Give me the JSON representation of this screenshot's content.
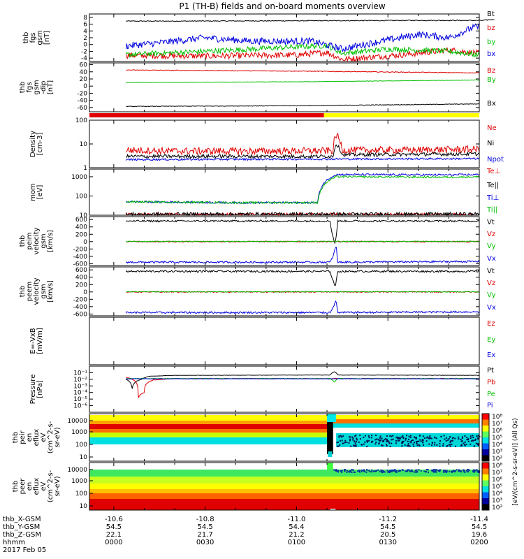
{
  "title": "P1 (TH-B) fields and on-board moments overview",
  "colors": {
    "black": "#000000",
    "red": "#e00000",
    "green": "#00c000",
    "blue": "#0000e0",
    "yellow": "#ffff00",
    "cyan": "#00e0e0"
  },
  "chart_data": [
    {
      "type": "line",
      "ylabel": [
        "thb",
        "fgs",
        "gsm",
        "[nT]"
      ],
      "ylim": [
        -5,
        9
      ],
      "ticks": [
        {
          "v": 8,
          "t": "8"
        },
        {
          "v": 6,
          "t": "6"
        },
        {
          "v": 4,
          "t": "4"
        },
        {
          "v": 2,
          "t": "2"
        },
        {
          "v": 0,
          "t": "0"
        },
        {
          "v": -2,
          "t": "-2"
        },
        {
          "v": -4,
          "t": "-4"
        }
      ],
      "series": [
        {
          "name": "Bt",
          "color": "#000000",
          "x": [
            4,
            20,
            60,
            100,
            118,
            119,
            121,
            125
          ],
          "y": [
            6.9,
            6.9,
            7.0,
            7.1,
            7.1,
            7.1,
            7.1,
            7.4
          ],
          "noise": 0.12
        },
        {
          "name": "bz",
          "color": "#e00000",
          "x": [
            4,
            30,
            60,
            70,
            75,
            95,
            110,
            120
          ],
          "y": [
            -3.2,
            -3.4,
            -3.1,
            -2.3,
            -4.4,
            -3.0,
            -1.6,
            -2.6
          ],
          "noise": 0.9
        },
        {
          "name": "by",
          "color": "#00c000",
          "x": [
            4,
            30,
            70,
            75,
            90,
            110,
            120
          ],
          "y": [
            -3.0,
            -2.0,
            -0.3,
            -2.6,
            -1.3,
            -2.0,
            -3.1
          ],
          "noise": 0.8
        },
        {
          "name": "bx",
          "color": "#0000e0",
          "x": [
            4,
            15,
            30,
            45,
            65,
            75,
            85,
            100,
            110,
            118,
            120
          ],
          "y": [
            -0.4,
            0.5,
            2.0,
            1.0,
            1.0,
            -1.3,
            0.5,
            3.0,
            2.0,
            5.0,
            5.2
          ],
          "noise": 1.0
        }
      ]
    },
    {
      "type": "line",
      "ylabel": [
        "thb",
        "fgs",
        "gsm",
        "-dip",
        "[nT]"
      ],
      "ylim": [
        -72,
        65
      ],
      "ticks": [
        {
          "v": 60,
          "t": "60"
        },
        {
          "v": 40,
          "t": "40"
        },
        {
          "v": 20,
          "t": "20"
        },
        {
          "v": 0,
          "t": "0"
        },
        {
          "v": -20,
          "t": "-20"
        },
        {
          "v": -40,
          "t": "-40"
        },
        {
          "v": -60,
          "t": "-60"
        }
      ],
      "series": [
        {
          "name": "Bz",
          "color": "#e00000",
          "x": [
            4,
            60,
            120
          ],
          "y": [
            45,
            42,
            37
          ],
          "noise": 1.0
        },
        {
          "name": "By",
          "color": "#00c000",
          "x": [
            4,
            60,
            120
          ],
          "y": [
            10,
            12,
            17
          ],
          "noise": 0.6
        },
        {
          "name": "Bx",
          "color": "#000000",
          "x": [
            4,
            60,
            120
          ],
          "y": [
            -57,
            -55,
            -50
          ],
          "noise": 0.8
        }
      ]
    },
    {
      "type": "line",
      "scale": "log",
      "ylabel": [
        "Density",
        "[cm-3]"
      ],
      "ylim": [
        1,
        100
      ],
      "ticks": [
        {
          "v": 100,
          "t": "100"
        },
        {
          "v": 10,
          "t": "10"
        },
        {
          "v": 1,
          "t": "1"
        }
      ],
      "series": [
        {
          "name": "Ne",
          "color": "#e00000",
          "x": [
            4,
            20,
            55,
            72,
            73,
            75,
            95,
            120
          ],
          "y": [
            5.5,
            5.0,
            5.0,
            5.2,
            25,
            5.5,
            5.5,
            6.0
          ],
          "noise": 0.3
        },
        {
          "name": "Ni",
          "color": "#000000",
          "x": [
            4,
            55,
            72,
            73,
            75,
            120
          ],
          "y": [
            3.0,
            3.0,
            3.0,
            10,
            3.5,
            3.8
          ],
          "noise": 0.15
        },
        {
          "name": "Npot",
          "color": "#0000e0",
          "x": [
            4,
            120
          ],
          "y": [
            2.2,
            2.4
          ],
          "noise": 0.08
        }
      ]
    },
    {
      "type": "line",
      "scale": "log",
      "ylabel": [
        "mom",
        "[eV]"
      ],
      "ylim": [
        10,
        2500
      ],
      "ticks": [
        {
          "v": 1000,
          "t": "1000"
        },
        {
          "v": 100,
          "t": "100"
        },
        {
          "v": 10,
          "t": "10"
        }
      ],
      "series": [
        {
          "name": "Te⊥",
          "color": "#e00000",
          "x": [
            4,
            120
          ],
          "y": [
            10.5,
            10.5
          ],
          "noise": 0.2
        },
        {
          "name": "Te||",
          "color": "#000000",
          "x": [
            4,
            120
          ],
          "y": [
            11.2,
            11.2
          ],
          "noise": 0.2
        },
        {
          "name": "Ti⊥",
          "color": "#0000e0",
          "x": [
            4,
            40,
            67,
            73,
            110,
            120
          ],
          "y": [
            50,
            45,
            45,
            1300,
            1250,
            1300
          ],
          "noise": 0.1
        },
        {
          "name": "Ti||",
          "color": "#00c000",
          "x": [
            4,
            40,
            67,
            73,
            110,
            120
          ],
          "y": [
            50,
            45,
            45,
            1000,
            950,
            1000
          ],
          "noise": 0.1
        }
      ]
    },
    {
      "type": "line",
      "ylabel": [
        "thb",
        "peim",
        "velocity",
        "gsm",
        "[km/s]"
      ],
      "ylim": [
        -650,
        680
      ],
      "ticks": [
        {
          "v": 600,
          "t": "600"
        },
        {
          "v": 400,
          "t": "400"
        },
        {
          "v": 200,
          "t": "200"
        },
        {
          "v": 0,
          "t": "0"
        },
        {
          "v": -200,
          "t": "-200"
        },
        {
          "v": -400,
          "t": "-400"
        },
        {
          "v": -600,
          "t": "-600"
        }
      ],
      "series": [
        {
          "name": "Vt",
          "color": "#000000",
          "x": [
            4,
            71,
            71.5,
            72.5,
            73,
            73.5,
            120
          ],
          "y": [
            560,
            560,
            300,
            -50,
            100,
            560,
            560
          ],
          "noise": 25
        },
        {
          "name": "Vz",
          "color": "#e00000",
          "x": [
            4,
            120
          ],
          "y": [
            0,
            0
          ],
          "noise": 15
        },
        {
          "name": "Vy",
          "color": "#00c000",
          "x": [
            4,
            120
          ],
          "y": [
            5,
            5
          ],
          "noise": 12
        },
        {
          "name": "Vx",
          "color": "#0000e0",
          "x": [
            4,
            71,
            72,
            73,
            73.5,
            120
          ],
          "y": [
            -560,
            -560,
            -400,
            -100,
            -560,
            -540
          ],
          "noise": 25
        }
      ]
    },
    {
      "type": "line",
      "ylabel": [
        "thb",
        "peem",
        "velocity",
        "gsm",
        "[km/s]"
      ],
      "ylim": [
        -650,
        680
      ],
      "ticks": [
        {
          "v": 600,
          "t": "600"
        },
        {
          "v": 400,
          "t": "400"
        },
        {
          "v": 200,
          "t": "200"
        },
        {
          "v": 0,
          "t": "0"
        },
        {
          "v": -200,
          "t": "-200"
        },
        {
          "v": -400,
          "t": "-400"
        },
        {
          "v": -600,
          "t": "-600"
        }
      ],
      "series": [
        {
          "name": "Vt",
          "color": "#000000",
          "x": [
            4,
            71,
            72,
            72.8,
            73.5,
            120
          ],
          "y": [
            560,
            560,
            300,
            150,
            560,
            560
          ],
          "noise": 25
        },
        {
          "name": "Vz",
          "color": "#e00000",
          "x": [
            4,
            120
          ],
          "y": [
            0,
            0
          ],
          "noise": 15
        },
        {
          "name": "Vy",
          "color": "#00c000",
          "x": [
            4,
            120
          ],
          "y": [
            5,
            5
          ],
          "noise": 12
        },
        {
          "name": "Vx",
          "color": "#0000e0",
          "x": [
            4,
            71,
            72,
            73,
            73.5,
            120
          ],
          "y": [
            -560,
            -560,
            -400,
            -250,
            -560,
            -540
          ],
          "noise": 25
        }
      ]
    },
    {
      "type": "line",
      "ylabel": [
        "E=-VxB",
        "[mV/m]"
      ],
      "ylim": [
        0,
        1
      ],
      "ticks": [],
      "series": [
        {
          "name": "Ez",
          "color": "#e00000",
          "x": [],
          "y": []
        },
        {
          "name": "Ey",
          "color": "#00c000",
          "x": [],
          "y": []
        },
        {
          "name": "Ex",
          "color": "#0000e0",
          "x": [],
          "y": []
        }
      ]
    },
    {
      "type": "line",
      "scale": "log",
      "ylabel": [
        "Pressure",
        "[nPa]"
      ],
      "ylim": [
        1e-07,
        1
      ],
      "ticks": [
        {
          "v": 0.1,
          "t": "10⁻¹"
        },
        {
          "v": 0.01,
          "t": "10⁻²"
        },
        {
          "v": 0.001,
          "t": "10⁻³"
        },
        {
          "v": 0.0001,
          "t": "10⁻⁴"
        },
        {
          "v": 1e-05,
          "t": "10⁻⁵"
        },
        {
          "v": 1e-06,
          "t": "10⁻⁶"
        }
      ],
      "series": [
        {
          "name": "Pt",
          "color": "#000000",
          "x": [
            4,
            6,
            9,
            12,
            20,
            71,
            72.5,
            73.5,
            120
          ],
          "y": [
            0.01,
            0.0002,
            0.01,
            0.03,
            0.04,
            0.045,
            0.15,
            0.045,
            0.04
          ],
          "noise": 0.05
        },
        {
          "name": "Pb",
          "color": "#e00000",
          "x": [
            4,
            8,
            10,
            13,
            20,
            120
          ],
          "y": [
            0.02,
            1e-05,
            0.0001,
            0.008,
            0.013,
            0.013
          ],
          "noise": 0.08
        },
        {
          "name": "Pe",
          "color": "#00c000",
          "x": [
            4,
            71,
            72.5,
            73.5,
            120
          ],
          "y": [
            0.013,
            0.013,
            0.003,
            0.013,
            0.013
          ],
          "noise": 0.08
        },
        {
          "name": "Pi",
          "color": "#0000e0",
          "x": [
            4,
            120
          ],
          "y": [
            0.012,
            0.012
          ],
          "noise": 0.08
        }
      ]
    },
    {
      "type": "heatmap",
      "ylabel": [
        "thb",
        "peir",
        "en",
        "eflux",
        "eV",
        "(cm^2-s-",
        "sr-eV)"
      ],
      "ticks": [
        "10000",
        "1000",
        "100",
        "10"
      ]
    },
    {
      "type": "heatmap",
      "ylabel": [
        "thb",
        "peer",
        "en",
        "eflux",
        "eV",
        "(cm^2-s-",
        "sr-eV)"
      ],
      "ticks": [
        "10000",
        "1000",
        "100",
        "10"
      ]
    }
  ],
  "legend_labels": [
    "Bt",
    "bz",
    "by",
    "bx",
    "Bz",
    "By",
    "Bx",
    "Ne",
    "Ni",
    "Npot",
    "Te⊥",
    "Te||",
    "Ti⊥",
    "Ti||",
    "Vt",
    "Vz",
    "Vy",
    "Vx",
    "Vt",
    "Vz",
    "Vy",
    "Vx",
    "Ez",
    "Ey",
    "Ex",
    "Pt",
    "Pb",
    "Pe",
    "Pi"
  ],
  "colorbar": {
    "label": "[eV/(cm^2-s-sr-eV)] (All Qs)",
    "ticks": [
      "10⁸",
      "10⁷",
      "10⁶",
      "10⁵",
      "10⁴",
      "10³",
      "10²"
    ],
    "ticks2": [
      "10⁸",
      "10⁷",
      "10⁶",
      "10⁵",
      "10⁴",
      "10³",
      "10²"
    ]
  },
  "x_axis": {
    "row_labels": [
      "thb_X-GSM",
      "thb_Y-GSM",
      "thb_Z-GSM",
      "hhmm",
      "2017 Feb 05"
    ],
    "columns": [
      {
        "x": "-10.6",
        "y": "54.5",
        "z": "22.1",
        "t": "0000"
      },
      {
        "x": "-10.8",
        "y": "54.5",
        "z": "21.7",
        "t": "0030"
      },
      {
        "x": "-11.0",
        "y": "54.4",
        "z": "21.2",
        "t": "0100"
      },
      {
        "x": "-11.2",
        "y": "54.5",
        "z": "20.5",
        "t": "0130"
      },
      {
        "x": "-11.4",
        "y": "54.5",
        "z": "19.6",
        "t": "0200"
      }
    ]
  }
}
